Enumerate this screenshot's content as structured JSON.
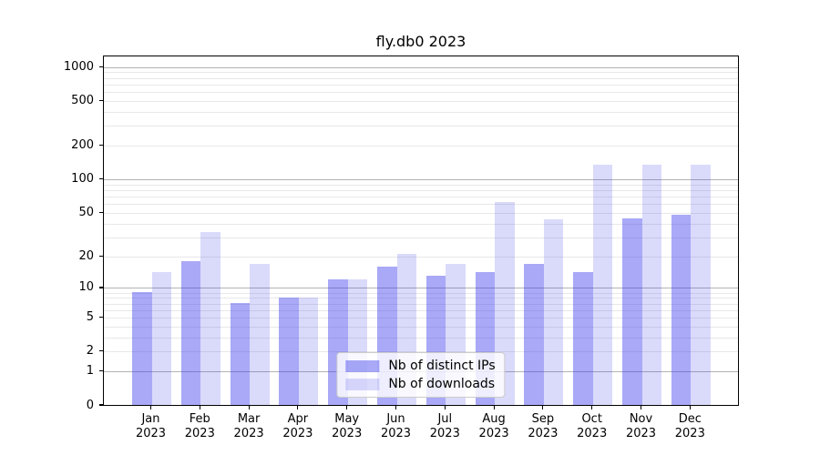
{
  "chart_data": {
    "type": "bar",
    "title": "fly.db0 2023",
    "categories": [
      "Jan 2023",
      "Feb 2023",
      "Mar 2023",
      "Apr 2023",
      "May 2023",
      "Jun 2023",
      "Jul 2023",
      "Aug 2023",
      "Sep 2023",
      "Oct 2023",
      "Nov 2023",
      "Dec 2023"
    ],
    "series": [
      {
        "name": "Nb of distinct IPs",
        "base_color": "#3232eb",
        "alpha": 0.42,
        "solid_color": "#a9a9f6",
        "values": [
          9,
          18,
          7,
          8,
          12,
          16,
          13,
          14,
          17,
          14,
          44,
          48
        ]
      },
      {
        "name": "Nb of downloads",
        "base_color": "#3232eb",
        "alpha": 0.18,
        "solid_color": "#dadafb",
        "values": [
          14,
          33,
          17,
          8,
          12,
          21,
          17,
          62,
          43,
          135,
          135,
          135
        ]
      }
    ],
    "xlabel": "",
    "ylabel": "",
    "y_axis": {
      "scale": "log1p",
      "tick_labels": [
        "0",
        "1",
        "2",
        "5",
        "10",
        "20",
        "50",
        "100",
        "200",
        "500",
        "1000"
      ],
      "tick_values": [
        0,
        1,
        2,
        5,
        10,
        20,
        50,
        100,
        200,
        500,
        1000
      ],
      "major_grid_values": [
        1,
        10,
        100,
        1000
      ],
      "ylim": [
        0,
        1260
      ]
    },
    "grid": "major+minor horizontal",
    "legend": {
      "position": "lower center",
      "inside_plot": true
    },
    "colors": {
      "major_grid": "#b3b3b3",
      "minor_grid": "#e8e8e8",
      "spine": "#000000",
      "text": "#000000",
      "background": "#ffffff"
    }
  }
}
